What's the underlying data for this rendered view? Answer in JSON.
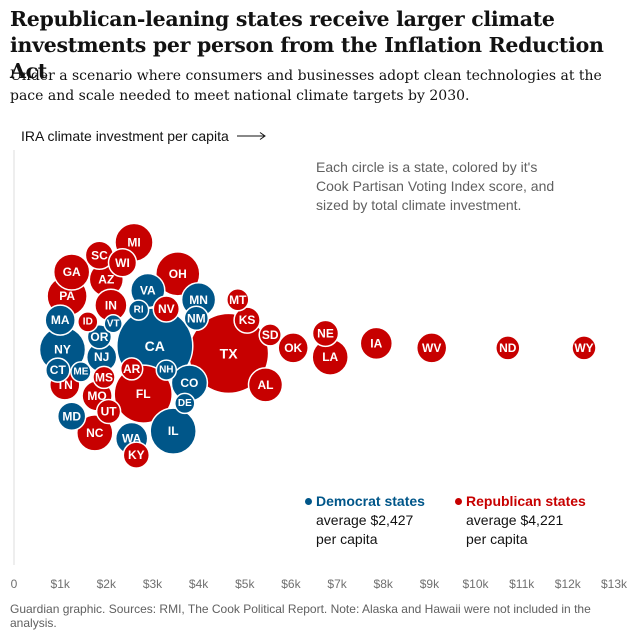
{
  "title": "Republican-leaning states receive larger climate investments per person from the Inflation Reduction Act",
  "subtitle": "Under a scenario where consumers and businesses adopt clean technologies at the pace and scale needed to meet national climate targets by 2030.",
  "annotation": "Each circle is a state, colored by it's Cook Partisan Voting Index score, and sized by total climate investment.",
  "legend": {
    "democrat": {
      "label": "Democrat states",
      "line1": "average $2,427",
      "line2": "per capita",
      "color": "#005689"
    },
    "republican": {
      "label": "Republican states",
      "line1": "average $4,221",
      "line2": "per capita",
      "color": "#c70000"
    }
  },
  "source": "Guardian graphic. Sources: RMI, The Cook Political Report. Note: Alaska and Hawaii were not included in the analysis.",
  "chart_data": {
    "type": "scatter",
    "xlabel": "IRA climate investment per capita",
    "xlim": [
      0,
      13000
    ],
    "x_ticks": [
      0,
      1000,
      2000,
      3000,
      4000,
      5000,
      6000,
      7000,
      8000,
      9000,
      10000,
      11000,
      12000,
      13000
    ],
    "x_tick_labels": [
      "0",
      "$1k",
      "$2k",
      "$3k",
      "$4k",
      "$5k",
      "$6k",
      "$7k",
      "$8k",
      "$9k",
      "$10k",
      "$11k",
      "$12k",
      "$13k"
    ],
    "series": [
      {
        "name": "Democrat states",
        "color": "#005689",
        "points": [
          {
            "label": "CA",
            "x": 3050,
            "lane": 0,
            "size": 38
          },
          {
            "label": "NY",
            "x": 1050,
            "lane": 0.1,
            "size": 23
          },
          {
            "label": "IL",
            "x": 3450,
            "lane": 2.3,
            "size": 23
          },
          {
            "label": "VA",
            "x": 2900,
            "lane": -1.5,
            "size": 17
          },
          {
            "label": "MN",
            "x": 4000,
            "lane": -1.25,
            "size": 17
          },
          {
            "label": "CO",
            "x": 3800,
            "lane": 1.0,
            "size": 18
          },
          {
            "label": "WA",
            "x": 2550,
            "lane": 2.5,
            "size": 16
          },
          {
            "label": "NJ",
            "x": 1900,
            "lane": 0.3,
            "size": 15
          },
          {
            "label": "MA",
            "x": 1000,
            "lane": -0.7,
            "size": 15
          },
          {
            "label": "MD",
            "x": 1250,
            "lane": 1.9,
            "size": 14
          },
          {
            "label": "OR",
            "x": 1850,
            "lane": -0.25,
            "size": 12
          },
          {
            "label": "CT",
            "x": 950,
            "lane": 0.65,
            "size": 12
          },
          {
            "label": "NM",
            "x": 3950,
            "lane": -0.75,
            "size": 12
          },
          {
            "label": "NH",
            "x": 3300,
            "lane": 0.65,
            "size": 10
          },
          {
            "label": "DE",
            "x": 3700,
            "lane": 1.55,
            "size": 10
          },
          {
            "label": "RI",
            "x": 2700,
            "lane": -0.97,
            "size": 10
          },
          {
            "label": "VT",
            "x": 2150,
            "lane": -0.6,
            "size": 9
          },
          {
            "label": "ME",
            "x": 1450,
            "lane": 0.7,
            "size": 10
          }
        ]
      },
      {
        "name": "Republican states",
        "color": "#c70000",
        "points": [
          {
            "label": "TX",
            "x": 4650,
            "lane": 0.2,
            "size": 40
          },
          {
            "label": "FL",
            "x": 2800,
            "lane": 1.3,
            "size": 29
          },
          {
            "label": "OH",
            "x": 3550,
            "lane": -1.95,
            "size": 22
          },
          {
            "label": "PA",
            "x": 1150,
            "lane": -1.35,
            "size": 20
          },
          {
            "label": "MI",
            "x": 2600,
            "lane": -2.8,
            "size": 19
          },
          {
            "label": "GA",
            "x": 1250,
            "lane": -2.0,
            "size": 18
          },
          {
            "label": "NC",
            "x": 1750,
            "lane": 2.35,
            "size": 18
          },
          {
            "label": "AZ",
            "x": 2000,
            "lane": -1.8,
            "size": 17
          },
          {
            "label": "IN",
            "x": 2100,
            "lane": -1.1,
            "size": 16
          },
          {
            "label": "MO",
            "x": 1800,
            "lane": 1.35,
            "size": 15
          },
          {
            "label": "AL",
            "x": 5450,
            "lane": 1.05,
            "size": 17
          },
          {
            "label": "LA",
            "x": 6850,
            "lane": 0.3,
            "size": 18
          },
          {
            "label": "IA",
            "x": 7850,
            "lane": -0.07,
            "size": 16
          },
          {
            "label": "TN",
            "x": 1100,
            "lane": 1.05,
            "size": 15
          },
          {
            "label": "SC",
            "x": 1850,
            "lane": -2.45,
            "size": 14
          },
          {
            "label": "WI",
            "x": 2350,
            "lane": -2.25,
            "size": 14
          },
          {
            "label": "OK",
            "x": 6050,
            "lane": 0.05,
            "size": 15
          },
          {
            "label": "KY",
            "x": 2650,
            "lane": 2.95,
            "size": 13
          },
          {
            "label": "KS",
            "x": 5050,
            "lane": -0.7,
            "size": 13
          },
          {
            "label": "WV",
            "x": 9050,
            "lane": 0.05,
            "size": 15
          },
          {
            "label": "NE",
            "x": 6750,
            "lane": -0.34,
            "size": 13
          },
          {
            "label": "UT",
            "x": 2050,
            "lane": 1.77,
            "size": 12
          },
          {
            "label": "NV",
            "x": 3300,
            "lane": -1.0,
            "size": 13
          },
          {
            "label": "MT",
            "x": 4850,
            "lane": -1.25,
            "size": 11
          },
          {
            "label": "MS",
            "x": 1950,
            "lane": 0.85,
            "size": 11
          },
          {
            "label": "AR",
            "x": 2550,
            "lane": 0.62,
            "size": 11
          },
          {
            "label": "ID",
            "x": 1600,
            "lane": -0.65,
            "size": 10
          },
          {
            "label": "SD",
            "x": 5550,
            "lane": -0.3,
            "size": 11
          },
          {
            "label": "ND",
            "x": 10700,
            "lane": 0.05,
            "size": 12
          },
          {
            "label": "WY",
            "x": 12350,
            "lane": 0.05,
            "size": 12
          }
        ]
      }
    ]
  }
}
